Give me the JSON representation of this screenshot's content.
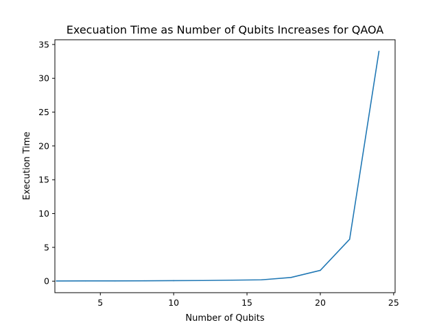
{
  "chart_data": {
    "type": "line",
    "title": "Execuation Time as Number of Qubits Increases for QAOA",
    "xlabel": "Number of Qubits",
    "ylabel": "Execution Time",
    "xlim": [
      1.9,
      25.1
    ],
    "ylim": [
      -1.7,
      35.7
    ],
    "xticks": [
      5,
      10,
      15,
      20,
      25
    ],
    "yticks": [
      0,
      5,
      10,
      15,
      20,
      25,
      30,
      35
    ],
    "grid": false,
    "series_color": "#1f77b4",
    "x": [
      2,
      4,
      6,
      8,
      10,
      12,
      14,
      16,
      18,
      20,
      22,
      24
    ],
    "y": [
      0.03,
      0.04,
      0.04,
      0.06,
      0.08,
      0.1,
      0.15,
      0.2,
      0.55,
      1.6,
      6.2,
      34.0
    ]
  }
}
